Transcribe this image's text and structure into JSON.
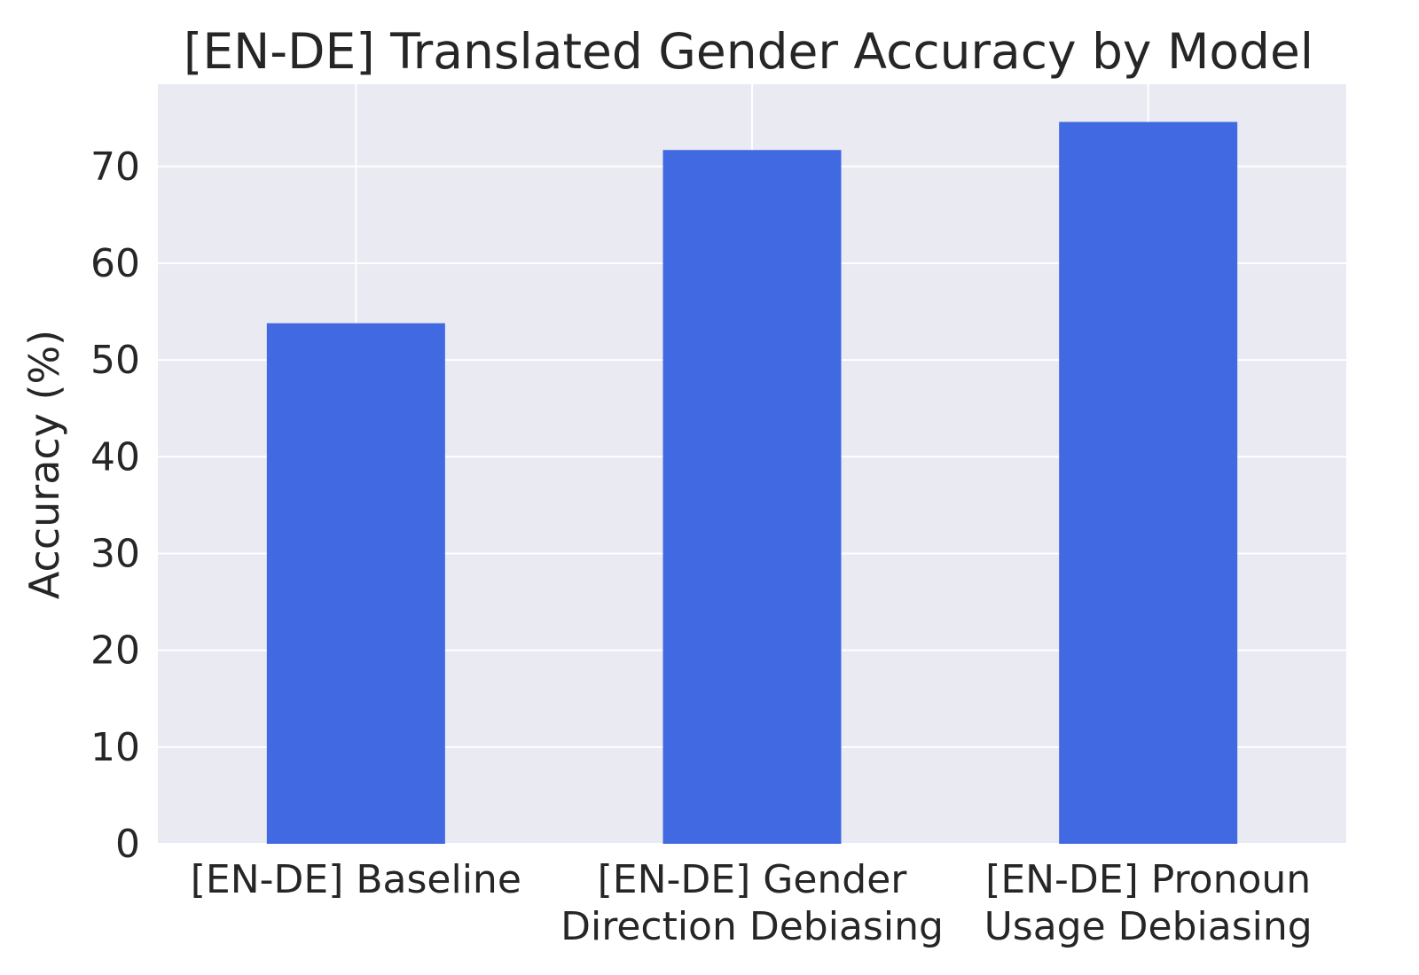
{
  "colors": {
    "bar": "#4169e1",
    "plot_background": "#eaeaf2",
    "grid": "#ffffff",
    "text": "#262626"
  },
  "chart_data": {
    "type": "bar",
    "title": "[EN-DE] Translated Gender Accuracy by Model",
    "xlabel": "",
    "ylabel": "Accuracy (%)",
    "categories": [
      [
        "[EN-DE] Baseline"
      ],
      [
        "[EN-DE] Gender",
        "Direction Debiasing"
      ],
      [
        "[EN-DE] Pronoun",
        "Usage Debiasing"
      ]
    ],
    "values": [
      53.8,
      71.7,
      74.6
    ],
    "ylim": [
      0,
      78.5
    ],
    "yticks": [
      0,
      10,
      20,
      30,
      40,
      50,
      60,
      70
    ],
    "grid": true,
    "legend": "none"
  }
}
